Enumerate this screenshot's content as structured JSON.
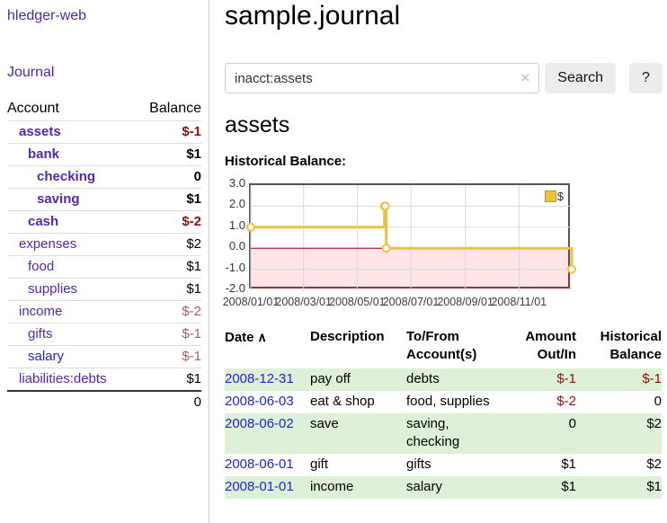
{
  "sidebar": {
    "brand": "hledger-web",
    "journal_link": "Journal",
    "accounts": {
      "header": {
        "account": "Account",
        "balance": "Balance"
      },
      "rows": [
        {
          "name": "assets",
          "balance": "$-1"
        },
        {
          "name": "bank",
          "balance": "$1"
        },
        {
          "name": "checking",
          "balance": "0"
        },
        {
          "name": "saving",
          "balance": "$1"
        },
        {
          "name": "cash",
          "balance": "$-2"
        },
        {
          "name": "expenses",
          "balance": "$2"
        },
        {
          "name": "food",
          "balance": "$1"
        },
        {
          "name": "supplies",
          "balance": "$1"
        },
        {
          "name": "income",
          "balance": "$-2"
        },
        {
          "name": "gifts",
          "balance": "$-1"
        },
        {
          "name": "salary",
          "balance": "$-1"
        },
        {
          "name": "liabilities:debts",
          "balance": "$1"
        }
      ],
      "total": "0"
    }
  },
  "main": {
    "title": "sample.journal",
    "search": {
      "value": "inacct:assets",
      "clear_icon": "×",
      "search_button": "Search",
      "help_button": "?"
    },
    "account_heading": "assets",
    "chart_title": "Historical Balance:"
  },
  "chart_data": {
    "type": "line",
    "title": "Historical Balance of assets",
    "series": [
      {
        "name": "$",
        "color": "#edc240",
        "step": true,
        "points": [
          [
            "2008-01-01",
            1
          ],
          [
            "2008-06-01",
            2
          ],
          [
            "2008-06-02",
            2
          ],
          [
            "2008-06-03",
            0
          ],
          [
            "2008-12-31",
            -1
          ]
        ]
      }
    ],
    "x_range": [
      "2008-01-01",
      "2008-12-31"
    ],
    "x_ticks": [
      "2008-01-01",
      "2008-03-01",
      "2008-05-01",
      "2008-07-01",
      "2008-09-01",
      "2008-11-01"
    ],
    "x_tick_labels": [
      "2008/01/01",
      "2008/03/01",
      "2008/05/01",
      "2008/07/01",
      "2008/09/01",
      "2008/11/01"
    ],
    "y_ticks": [
      3.0,
      2.0,
      1.0,
      0.0,
      -1.0,
      -2.0
    ],
    "y_tick_labels": [
      "3.0",
      "2.0",
      "1.0",
      "0.0",
      "-1.0",
      "-2.0"
    ],
    "ylim": [
      -2,
      3
    ],
    "grid": true,
    "zero_line_color": "#8b0000",
    "negative_region_color": "rgba(255,0,0,0.10)",
    "legend": {
      "position": "top-right",
      "label": "$"
    }
  },
  "transactions": {
    "headers": {
      "date": "Date",
      "description": "Description",
      "tofrom": "To/From Account(s)",
      "amount": "Amount Out/In",
      "balance": "Historical Balance"
    },
    "sort_icon": "∧",
    "rows": [
      {
        "date": "2008-12-31",
        "description": "pay off",
        "accounts": "debts",
        "amount": "$-1",
        "balance": "$-1"
      },
      {
        "date": "2008-06-03",
        "description": "eat & shop",
        "accounts": "food, supplies",
        "amount": "$-2",
        "balance": "0"
      },
      {
        "date": "2008-06-02",
        "description": "save",
        "accounts": "saving, checking",
        "amount": "0",
        "balance": "$2"
      },
      {
        "date": "2008-06-01",
        "description": "gift",
        "accounts": "gifts",
        "amount": "$1",
        "balance": "$2"
      },
      {
        "date": "2008-01-01",
        "description": "income",
        "accounts": "salary",
        "amount": "$1",
        "balance": "$1"
      }
    ]
  }
}
